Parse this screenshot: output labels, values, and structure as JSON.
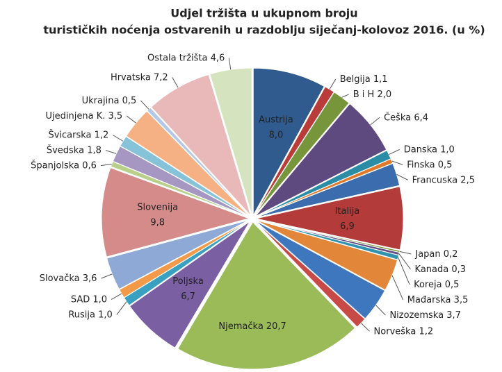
{
  "chart_data": {
    "type": "pie",
    "title": [
      "Udjel tržišta u ukupnom broju",
      "turističkih noćenja ostvarenih u razdoblju siječanj-kolovoz 2016. (u %)"
    ],
    "categories": [
      "Austrija",
      "Belgija",
      "B i H",
      "Češka",
      "Danska",
      "Finska",
      "Francuska",
      "Italija",
      "Japan",
      "Kanada",
      "Koreja",
      "Mađarska",
      "Nizozemska",
      "Norveška",
      "Njemačka",
      "Poljska",
      "Rusija",
      "SAD",
      "Slovačka",
      "Slovenija",
      "Španjolska",
      "Švedska",
      "Švicarska",
      "Ujedinjena K.",
      "Ukrajina",
      "Hrvatska",
      "Ostala tržišta"
    ],
    "values": [
      8.0,
      1.1,
      2.0,
      6.4,
      1.0,
      0.5,
      2.5,
      6.9,
      0.2,
      0.3,
      0.5,
      3.5,
      3.7,
      1.2,
      20.7,
      6.7,
      1.0,
      1.0,
      3.6,
      9.8,
      0.6,
      1.8,
      1.2,
      3.5,
      0.5,
      7.2,
      4.6
    ],
    "value_labels": [
      "8,0",
      "1,1",
      "2,0",
      "6,4",
      "1,0",
      "0,5",
      "2,5",
      "6,9",
      "0,2",
      "0,3",
      "0,5",
      "3,5",
      "3,7",
      "1,2",
      "20,7",
      "6,7",
      "1,0",
      "1,0",
      "3,6",
      "9,8",
      "0,6",
      "1,8",
      "1,2",
      "3,5",
      "0,5",
      "7,2",
      "4,6"
    ],
    "colors": [
      "#2f5b8e",
      "#b93c3a",
      "#77963b",
      "#5f4a7f",
      "#2b8ca6",
      "#e0792a",
      "#3a6cae",
      "#b33b39",
      "#7c9c3e",
      "#634e86",
      "#2f93ae",
      "#e2873a",
      "#3f77bf",
      "#c84a47",
      "#9bbb59",
      "#7a5fa2",
      "#3aa0c0",
      "#f39a4a",
      "#8fa9d6",
      "#d48b89",
      "#b9cf8a",
      "#a696c2",
      "#86c3d8",
      "#f5b183",
      "#b5c7e6",
      "#e8b9b8",
      "#d5e3bf"
    ]
  }
}
